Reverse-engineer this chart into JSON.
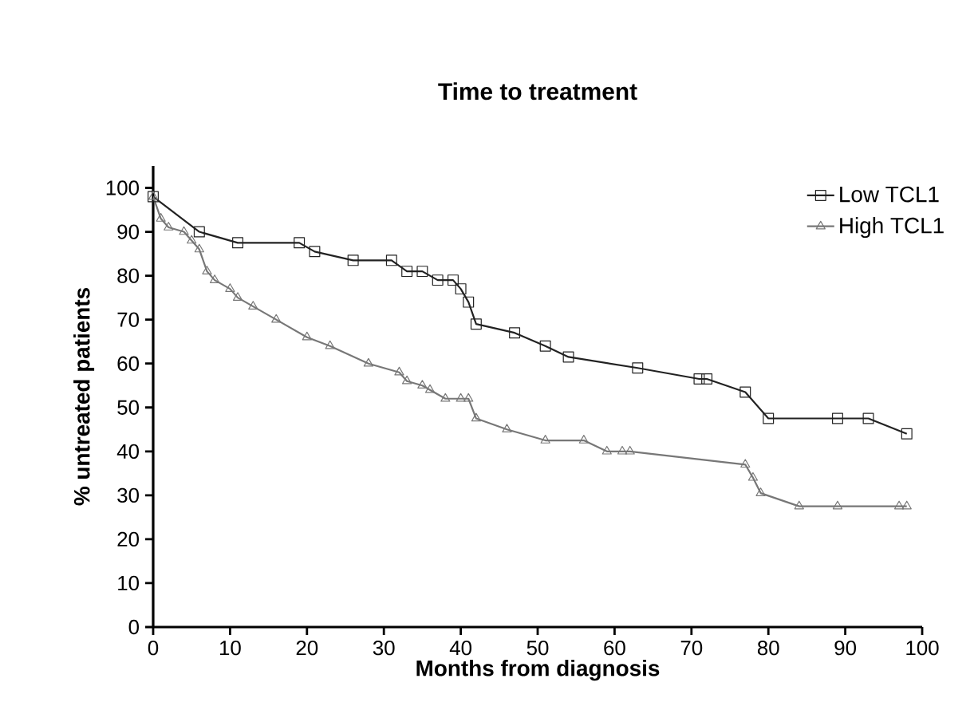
{
  "chart_data": {
    "type": "line",
    "title": "Time to treatment",
    "xlabel": "Months from diagnosis",
    "ylabel": "% untreated patients",
    "xlim": [
      0,
      100
    ],
    "ylim": [
      0,
      105
    ],
    "xticks": [
      0,
      10,
      20,
      30,
      40,
      50,
      60,
      70,
      80,
      90,
      100
    ],
    "yticks": [
      0,
      10,
      20,
      30,
      40,
      50,
      60,
      70,
      80,
      90,
      100
    ],
    "legend": "top right",
    "grid": false,
    "series": [
      {
        "name": "Low TCL1",
        "color": "#222222",
        "marker": "square",
        "x": [
          0,
          6,
          11,
          19,
          21,
          26,
          31,
          33,
          35,
          37,
          39,
          40,
          41,
          42,
          47,
          51,
          54,
          63,
          71,
          72,
          77,
          80,
          89,
          93,
          98
        ],
        "values": [
          98,
          90,
          87.5,
          87.5,
          85.5,
          83.5,
          83.5,
          81,
          81,
          79,
          79,
          77,
          74,
          69,
          67,
          64,
          61.5,
          59,
          56.5,
          56.5,
          53.5,
          47.5,
          47.5,
          47.5,
          44
        ]
      },
      {
        "name": "High TCL1",
        "color": "#777777",
        "marker": "triangle",
        "x": [
          0,
          1,
          2,
          4,
          5,
          6,
          7,
          8,
          10,
          11,
          13,
          16,
          20,
          23,
          28,
          32,
          33,
          35,
          36,
          38,
          40,
          41,
          42,
          46,
          51,
          56,
          59,
          61,
          62,
          77,
          78,
          79,
          84,
          89,
          97,
          98
        ],
        "values": [
          98,
          93,
          91,
          90,
          88,
          86,
          81,
          79,
          77,
          75,
          73,
          70,
          66,
          64,
          60,
          58,
          56,
          55,
          54,
          52,
          52,
          52,
          47.5,
          45,
          42.5,
          42.5,
          40,
          40,
          40,
          37,
          34,
          30.5,
          27.5,
          27.5,
          27.5,
          27.5
        ]
      }
    ]
  }
}
